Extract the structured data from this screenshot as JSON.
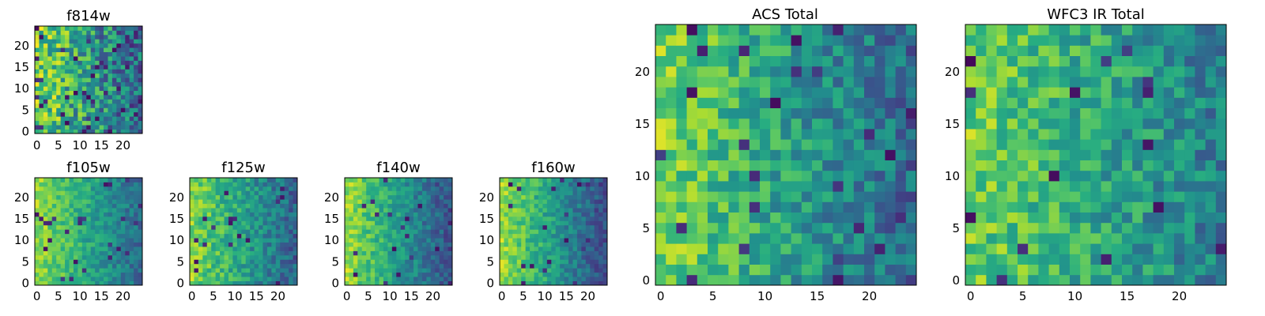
{
  "chart_data": [
    {
      "type": "heatmap",
      "title": "f814w",
      "grid_size": 25,
      "colormap": "viridis",
      "xticks": [
        0,
        5,
        10,
        15,
        20
      ],
      "yticks": [
        0,
        5,
        10,
        15,
        20
      ],
      "xlim": [
        -0.5,
        24.5
      ],
      "ylim": [
        -0.5,
        24.5
      ],
      "value_range": [
        0,
        1
      ],
      "dominant": "yellow-green, dark patches right",
      "seed": 11,
      "bias": 0.78,
      "slope": 0.45,
      "noise": 0.55,
      "dark": 0.07
    },
    {
      "type": "heatmap",
      "title": "f105w",
      "grid_size": 25,
      "colormap": "viridis",
      "xticks": [
        0,
        5,
        10,
        15,
        20
      ],
      "yticks": [
        0,
        5,
        10,
        15,
        20
      ],
      "xlim": [
        -0.5,
        24.5
      ],
      "ylim": [
        -0.5,
        24.5
      ],
      "value_range": [
        0,
        1
      ],
      "dominant": "yellow-green smooth, dark lower-right",
      "seed": 23,
      "bias": 0.85,
      "slope": 0.5,
      "noise": 0.25,
      "dark": 0.03
    },
    {
      "type": "heatmap",
      "title": "f125w",
      "grid_size": 25,
      "colormap": "viridis",
      "xticks": [
        0,
        5,
        10,
        15,
        20
      ],
      "yticks": [
        0,
        5,
        10,
        15,
        20
      ],
      "xlim": [
        -0.5,
        24.5
      ],
      "ylim": [
        -0.5,
        24.5
      ],
      "value_range": [
        0,
        1
      ],
      "dominant": "yellow-green, dark right edge",
      "seed": 37,
      "bias": 0.82,
      "slope": 0.5,
      "noise": 0.3,
      "dark": 0.03
    },
    {
      "type": "heatmap",
      "title": "f140w",
      "grid_size": 25,
      "colormap": "viridis",
      "xticks": [
        0,
        5,
        10,
        15,
        20
      ],
      "yticks": [
        0,
        5,
        10,
        15,
        20
      ],
      "xlim": [
        -0.5,
        24.5
      ],
      "ylim": [
        -0.5,
        24.5
      ],
      "value_range": [
        0,
        1
      ],
      "dominant": "yellow left, green/blue right",
      "seed": 41,
      "bias": 0.85,
      "slope": 0.6,
      "noise": 0.25,
      "dark": 0.03
    },
    {
      "type": "heatmap",
      "title": "f160w",
      "grid_size": 25,
      "colormap": "viridis",
      "xticks": [
        0,
        5,
        10,
        15,
        20
      ],
      "yticks": [
        0,
        5,
        10,
        15,
        20
      ],
      "xlim": [
        -0.5,
        24.5
      ],
      "ylim": [
        -0.5,
        24.5
      ],
      "value_range": [
        0,
        1
      ],
      "dominant": "yellow left, teal/blue right",
      "seed": 53,
      "bias": 0.86,
      "slope": 0.62,
      "noise": 0.25,
      "dark": 0.04
    },
    {
      "type": "heatmap",
      "title": "ACS Total",
      "grid_size": 25,
      "colormap": "viridis",
      "xticks": [
        0,
        5,
        10,
        15,
        20
      ],
      "yticks": [
        0,
        5,
        10,
        15,
        20
      ],
      "xlim": [
        -0.5,
        24.5
      ],
      "ylim": [
        -0.5,
        24.5
      ],
      "value_range": [
        0,
        1
      ],
      "dominant": "yellow left, green/teal right, scattered dark cells",
      "seed": 67,
      "bias": 0.8,
      "slope": 0.45,
      "noise": 0.35,
      "dark": 0.035
    },
    {
      "type": "heatmap",
      "title": "WFC3 IR Total",
      "grid_size": 25,
      "colormap": "viridis",
      "xticks": [
        0,
        5,
        10,
        15,
        20
      ],
      "yticks": [
        0,
        5,
        10,
        15,
        20
      ],
      "xlim": [
        -0.5,
        24.5
      ],
      "ylim": [
        -0.5,
        24.5
      ],
      "value_range": [
        0,
        1
      ],
      "dominant": "yellow-green, scattered dark cells",
      "seed": 79,
      "bias": 0.78,
      "slope": 0.35,
      "noise": 0.35,
      "dark": 0.03
    }
  ]
}
